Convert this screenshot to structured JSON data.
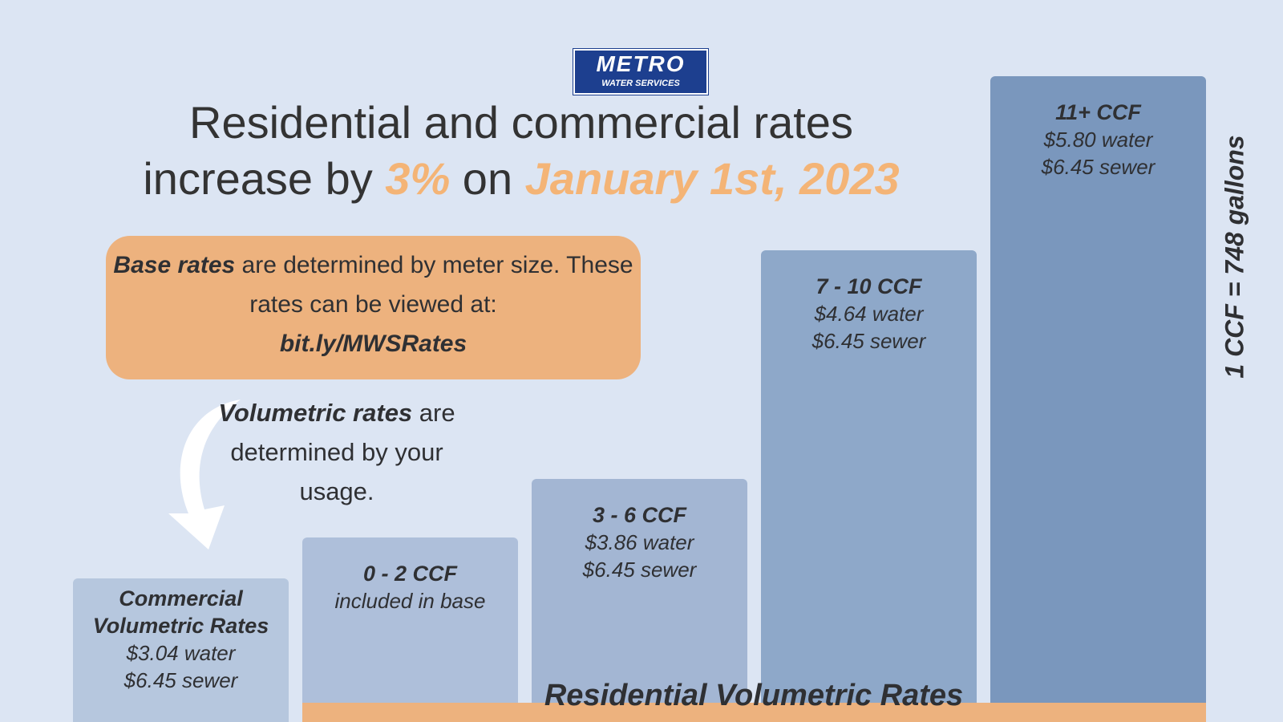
{
  "logo": {
    "name": "METRO",
    "subtitle": "WATER SERVICES"
  },
  "headline": {
    "line1": "Residential and commercial rates",
    "prefix": "increase by",
    "percent": "3%",
    "on": "on",
    "date": "January 1st, 2023"
  },
  "base_note": {
    "bold": "Base rates",
    "text": "are determined by meter size. These rates can be viewed at:",
    "link": "bit.ly/MWSRates"
  },
  "volumetric_note": {
    "bold": "Volumetric rates",
    "text": "are determined by your usage."
  },
  "tiers": [
    {
      "label": "Commercial Volumetric Rates",
      "lines": [
        "$3.04 water",
        "$6.45 sewer"
      ]
    },
    {
      "label": "0 - 2 CCF",
      "lines": [
        "included in base"
      ]
    },
    {
      "label": "3 - 6 CCF",
      "lines": [
        "$3.86 water",
        "$6.45 sewer"
      ]
    },
    {
      "label": "7 - 10 CCF",
      "lines": [
        "$4.64 water",
        "$6.45 sewer"
      ]
    },
    {
      "label": "11+ CCF",
      "lines": [
        "$5.80 water",
        "$6.45 sewer"
      ]
    }
  ],
  "residential_label": "Residential Volumetric Rates",
  "conversion": "1 CCF = 748 gallons"
}
